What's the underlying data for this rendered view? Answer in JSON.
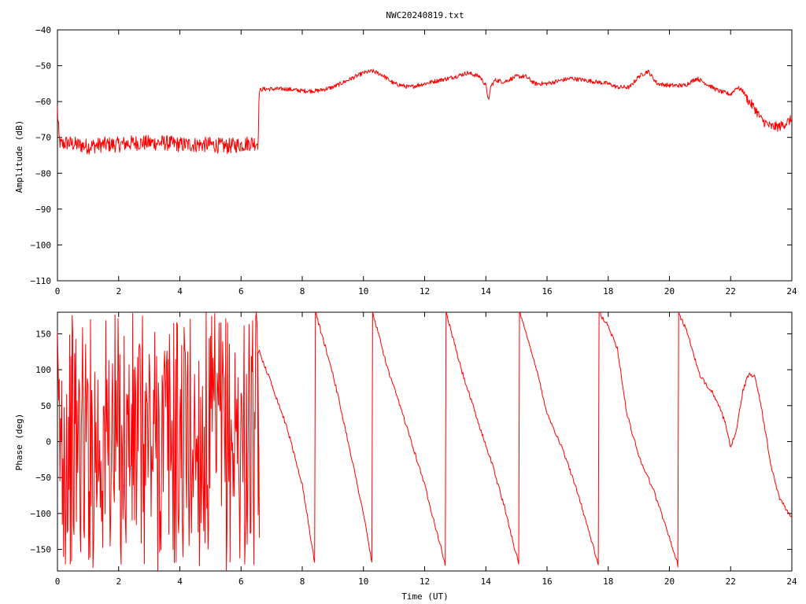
{
  "title": "NWC20240819.txt",
  "colors": {
    "trace": "#ff0000",
    "axis": "#000000",
    "background": "#ffffff"
  },
  "chart_data": [
    {
      "type": "line",
      "title": "NWC20240819.txt",
      "xlabel": "",
      "ylabel": "Amplitude (dB)",
      "xlim": [
        0,
        24
      ],
      "ylim": [
        -110,
        -40
      ],
      "xticks": [
        0,
        2,
        4,
        6,
        8,
        10,
        12,
        14,
        16,
        18,
        20,
        22,
        24
      ],
      "yticks": [
        -40,
        -50,
        -60,
        -70,
        -80,
        -90,
        -100,
        -110
      ],
      "grid": false,
      "series": [
        {
          "x": [
            0,
            0.02,
            0.05,
            0.1,
            0.3,
            0.6,
            1.0,
            1.5,
            2.0,
            2.5,
            3.0,
            3.5,
            4.0,
            4.5,
            5.0,
            5.5,
            6.0,
            6.3,
            6.55,
            6.6,
            6.7,
            7.0,
            7.5,
            8.0,
            8.5,
            9.0,
            9.5,
            10.0,
            10.3,
            10.6,
            11.0,
            11.5,
            12.0,
            12.5,
            12.8,
            13.0,
            13.4,
            13.8,
            14.0,
            14.1,
            14.15,
            14.3,
            14.6,
            15.0,
            15.3,
            15.6,
            16.0,
            16.5,
            16.8,
            17.2,
            17.6,
            18.0,
            18.3,
            18.7,
            19.0,
            19.3,
            19.6,
            20.0,
            20.5,
            20.9,
            21.2,
            21.6,
            22.0,
            22.2,
            22.4,
            22.6,
            22.8,
            23.0,
            23.3,
            23.6,
            24.0
          ],
          "y": [
            -62,
            -66,
            -70,
            -72,
            -71.5,
            -72,
            -72.5,
            -72,
            -72,
            -71.5,
            -71.5,
            -71.5,
            -72,
            -72,
            -72,
            -72.5,
            -72,
            -71.5,
            -71.5,
            -57,
            -56.5,
            -56.5,
            -56.5,
            -57,
            -57,
            -56,
            -54,
            -52,
            -51.5,
            -52.5,
            -55,
            -56,
            -55,
            -54,
            -53.5,
            -53,
            -52,
            -53,
            -55.5,
            -60,
            -56,
            -54,
            -54.5,
            -53,
            -53,
            -55,
            -55,
            -54,
            -53.5,
            -54,
            -54.5,
            -55,
            -56,
            -56,
            -53,
            -51.5,
            -55,
            -55.5,
            -55.5,
            -53.5,
            -55,
            -57,
            -58,
            -56,
            -57,
            -60,
            -62,
            -65,
            -67,
            -67,
            -65
          ]
        }
      ]
    },
    {
      "type": "line",
      "title": "",
      "xlabel": "Time (UT)",
      "ylabel": "Phase (deg)",
      "xlim": [
        0,
        24
      ],
      "ylim": [
        -180,
        180
      ],
      "xticks": [
        0,
        2,
        4,
        6,
        8,
        10,
        12,
        14,
        16,
        18,
        20,
        22,
        24
      ],
      "yticks": [
        150,
        100,
        50,
        0,
        -50,
        -100,
        -150
      ],
      "grid": false,
      "series": [
        {
          "x": [
            6.55,
            6.6,
            7.0,
            7.5,
            8.0,
            8.43,
            8.43,
            9.0,
            9.5,
            10.0,
            10.3,
            10.3,
            10.8,
            11.5,
            12.0,
            12.7,
            12.7,
            13.2,
            13.8,
            14.2,
            14.6,
            15.1,
            15.1,
            15.6,
            16.0,
            16.5,
            17.0,
            17.7,
            17.7,
            18.0,
            18.3,
            18.6,
            19.0,
            19.5,
            19.9,
            20.3,
            20.3,
            20.6,
            21.0,
            21.4,
            21.8,
            22.0,
            22.2,
            22.4,
            22.6,
            22.8,
            23.0,
            23.3,
            23.6,
            24.0
          ],
          "y": [
            120,
            125,
            80,
            20,
            -60,
            -175,
            180,
            95,
            0,
            -100,
            -175,
            180,
            100,
            10,
            -60,
            -175,
            180,
            100,
            20,
            -30,
            -90,
            -175,
            180,
            110,
            40,
            -10,
            -70,
            -175,
            180,
            160,
            130,
            40,
            -20,
            -70,
            -120,
            -175,
            180,
            150,
            90,
            70,
            30,
            -10,
            20,
            70,
            95,
            90,
            50,
            -30,
            -80,
            -105
          ]
        }
      ],
      "noise_region_x": [
        0,
        6.6
      ]
    }
  ]
}
